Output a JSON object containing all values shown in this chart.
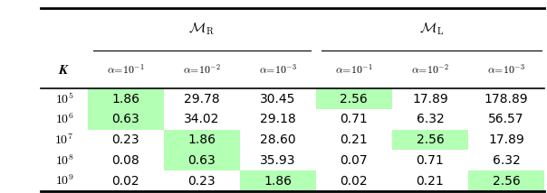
{
  "col_labels": [
    "$\\alpha\\!=\\!10^{-1}$",
    "$\\alpha\\!=\\!10^{-2}$",
    "$\\alpha\\!=\\!10^{-3}$",
    "$\\alpha\\!=\\!10^{-1}$",
    "$\\alpha\\!=\\!10^{-2}$",
    "$\\alpha\\!=\\!10^{-3}$"
  ],
  "row_labels": [
    "$10^5$",
    "$10^6$",
    "$10^7$",
    "$10^8$",
    "$10^9$"
  ],
  "group_labels": [
    "$\\mathcal{M}_{\\mathrm{R}}$",
    "$\\mathcal{M}_{\\mathrm{L}}$"
  ],
  "k_label": "$\\boldsymbol{K}$",
  "values": [
    [
      "1.86",
      "29.78",
      "30.45",
      "2.56",
      "17.89",
      "178.89"
    ],
    [
      "0.63",
      "34.02",
      "29.18",
      "0.71",
      "6.32",
      "56.57"
    ],
    [
      "0.23",
      "1.86",
      "28.60",
      "0.21",
      "2.56",
      "17.89"
    ],
    [
      "0.08",
      "0.63",
      "35.93",
      "0.07",
      "0.71",
      "6.32"
    ],
    [
      "0.02",
      "0.23",
      "1.86",
      "0.02",
      "0.21",
      "2.56"
    ]
  ],
  "highlight": [
    [
      true,
      false,
      false,
      true,
      false,
      false
    ],
    [
      true,
      false,
      false,
      false,
      false,
      false
    ],
    [
      false,
      true,
      false,
      false,
      true,
      false
    ],
    [
      false,
      true,
      false,
      false,
      false,
      false
    ],
    [
      false,
      false,
      true,
      false,
      false,
      true
    ]
  ],
  "highlight_color": "#b3ffb3",
  "bg_color": "#ffffff",
  "line_color": "#000000",
  "figsize": [
    6.04,
    2.14
  ],
  "dpi": 100
}
